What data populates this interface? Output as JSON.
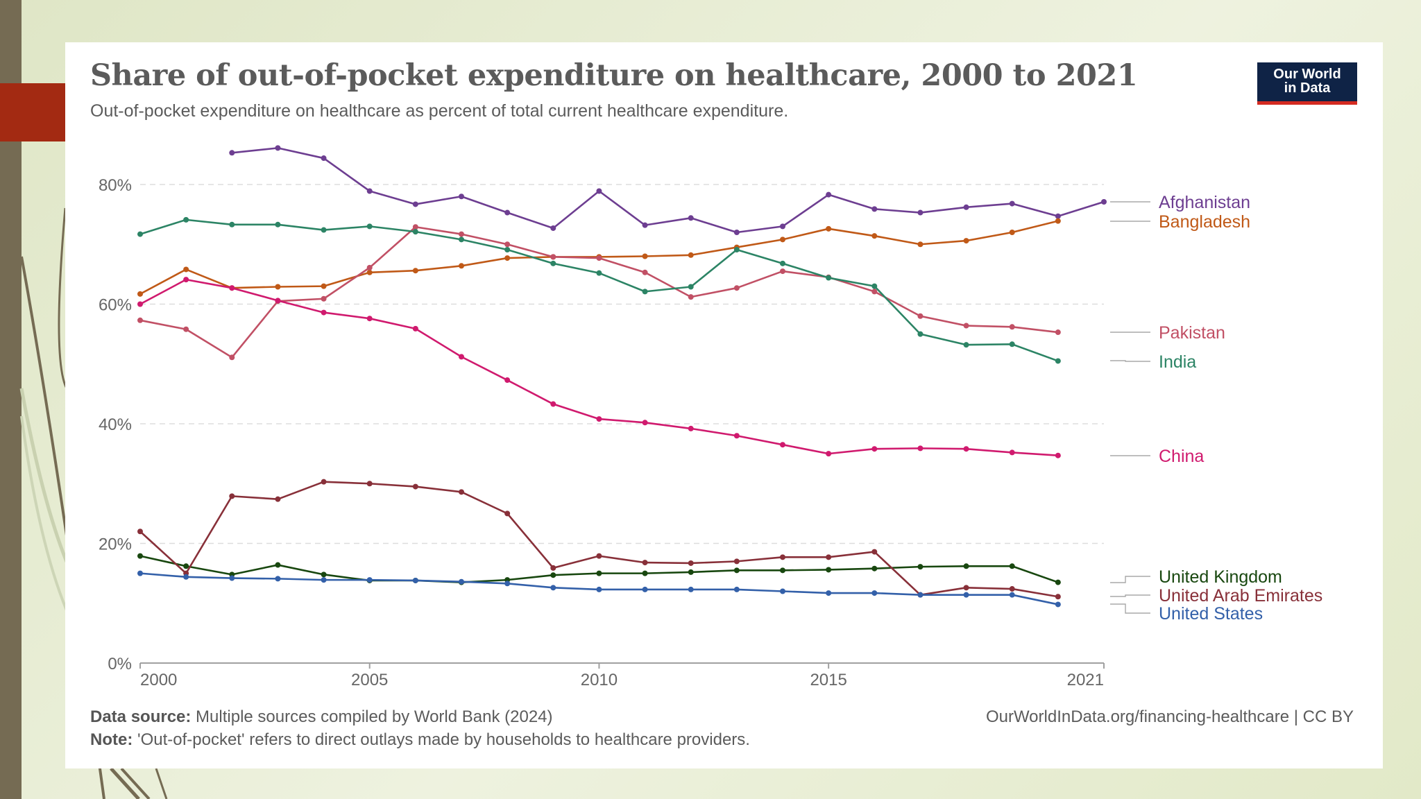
{
  "slide": {
    "accent_colors": {
      "strip": "#756b53",
      "bar": "#a32a12"
    }
  },
  "header": {
    "title": "Share of out-of-pocket expenditure on healthcare, 2000 to 2021",
    "subtitle": "Out-of-pocket expenditure on healthcare as percent of total current healthcare expenditure.",
    "logo_line1": "Our World",
    "logo_line2": "in Data"
  },
  "footer": {
    "source_label": "Data source:",
    "source_text": " Multiple sources compiled by World Bank (2024)",
    "note_label": "Note:",
    "note_text": " 'Out-of-pocket' refers to direct outlays made by households to healthcare providers.",
    "link": "OurWorldInData.org/financing-healthcare | CC BY"
  },
  "chart_data": {
    "type": "line",
    "title": "Share of out-of-pocket expenditure on healthcare, 2000 to 2021",
    "subtitle": "Out-of-pocket expenditure on healthcare as percent of total current healthcare expenditure.",
    "xlabel": "",
    "ylabel": "",
    "xlim": [
      2000,
      2021
    ],
    "ylim": [
      0,
      80
    ],
    "x_ticks": [
      2000,
      2005,
      2010,
      2015,
      2021
    ],
    "x_tick_labels": [
      "2000",
      "2005",
      "2010",
      "2015",
      "2021"
    ],
    "y_ticks": [
      0,
      20,
      40,
      60,
      80
    ],
    "y_tick_labels": [
      "0%",
      "20%",
      "40%",
      "60%",
      "80%"
    ],
    "grid": "horizontal dashed",
    "legend": "right (inline labels)",
    "series": [
      {
        "name": "Afghanistan",
        "color": "#6d3e91",
        "start_year": 2002,
        "values": [
          85.3,
          86.1,
          84.4,
          78.9,
          76.7,
          78.0,
          75.3,
          72.7,
          78.9,
          73.2,
          74.4,
          72.0,
          73.0,
          78.3,
          75.9,
          75.3,
          76.2,
          76.8,
          74.7,
          77.1
        ]
      },
      {
        "name": "Bangladesh",
        "color": "#c05917",
        "start_year": 2000,
        "values": [
          61.7,
          65.8,
          62.7,
          62.9,
          63.0,
          65.3,
          65.6,
          66.4,
          67.7,
          67.9,
          67.9,
          68.0,
          68.2,
          69.5,
          70.8,
          72.6,
          71.4,
          70.0,
          70.6,
          72.0,
          73.9
        ]
      },
      {
        "name": "Pakistan",
        "color": "#c15065",
        "start_year": 2000,
        "values": [
          57.3,
          55.8,
          51.1,
          60.5,
          60.9,
          66.1,
          72.9,
          71.7,
          70.0,
          67.9,
          67.7,
          65.3,
          61.2,
          62.7,
          65.5,
          64.5,
          62.1,
          58.0,
          56.4,
          56.2,
          55.3
        ]
      },
      {
        "name": "India",
        "color": "#2c8465",
        "start_year": 2000,
        "values": [
          71.7,
          74.1,
          73.3,
          73.3,
          72.4,
          73.0,
          72.1,
          70.8,
          69.1,
          66.8,
          65.2,
          62.1,
          62.9,
          69.1,
          66.8,
          64.4,
          63.0,
          55.0,
          53.2,
          53.3,
          50.5
        ]
      },
      {
        "name": "China",
        "color": "#d01a6e",
        "start_year": 2000,
        "values": [
          60.0,
          64.1,
          62.7,
          60.6,
          58.6,
          57.6,
          55.9,
          51.2,
          47.3,
          43.3,
          40.8,
          40.2,
          39.2,
          38.0,
          36.5,
          35.0,
          35.8,
          35.9,
          35.8,
          35.2,
          34.7
        ]
      },
      {
        "name": "United Kingdom",
        "color": "#18470f",
        "start_year": 2000,
        "values": [
          17.9,
          16.2,
          14.8,
          16.4,
          14.8,
          13.8,
          13.8,
          13.5,
          13.9,
          14.7,
          15.0,
          15.0,
          15.2,
          15.5,
          15.5,
          15.6,
          15.8,
          16.1,
          16.2,
          16.2,
          13.5
        ]
      },
      {
        "name": "United Arab Emirates",
        "color": "#883039",
        "start_year": 2000,
        "values": [
          22.0,
          15.0,
          27.9,
          27.4,
          30.3,
          30.0,
          29.5,
          28.6,
          25.0,
          15.9,
          17.9,
          16.8,
          16.7,
          17.0,
          17.7,
          17.7,
          18.6,
          11.4,
          12.6,
          12.4,
          11.1
        ]
      },
      {
        "name": "United States",
        "color": "#3360a9",
        "start_year": 2000,
        "values": [
          15.0,
          14.4,
          14.2,
          14.1,
          13.9,
          13.9,
          13.8,
          13.6,
          13.3,
          12.6,
          12.3,
          12.3,
          12.3,
          12.3,
          12.0,
          11.7,
          11.7,
          11.4,
          11.4,
          11.4,
          9.8
        ]
      }
    ]
  }
}
